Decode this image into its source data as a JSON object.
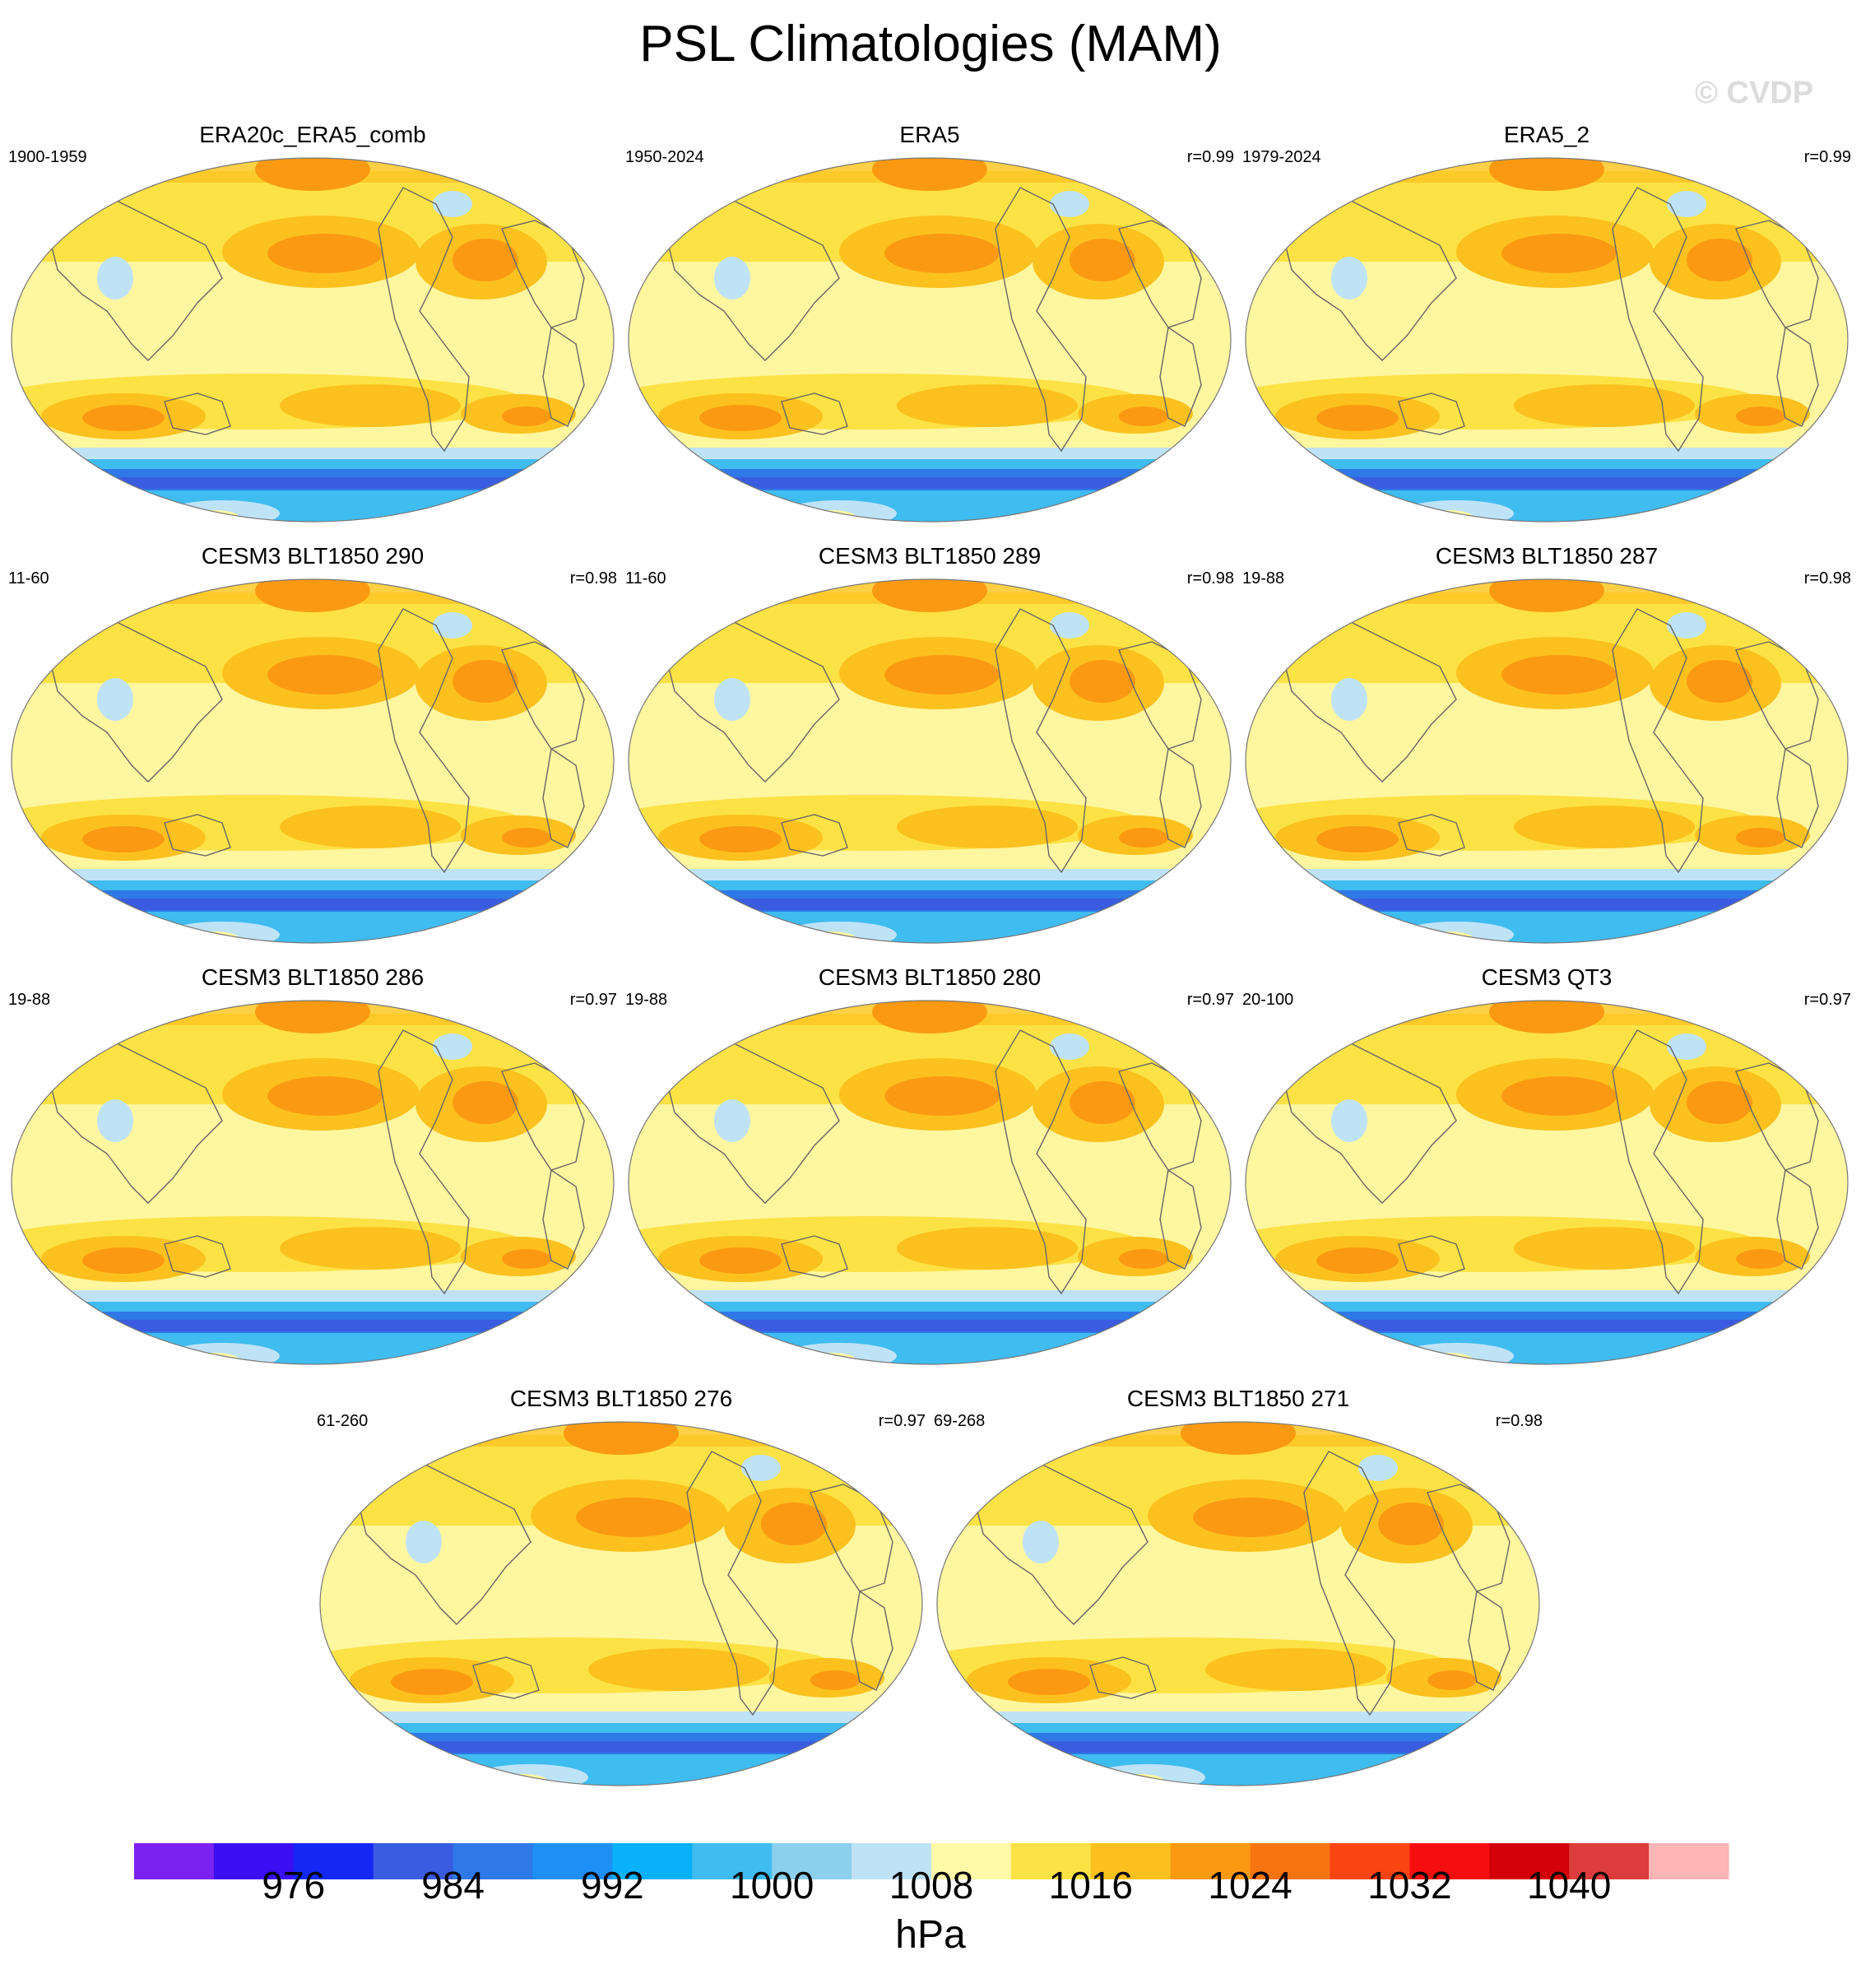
{
  "title": "PSL Climatologies (MAM)",
  "watermark": "© CVDP",
  "panels": [
    {
      "name": "ERA20c_ERA5_comb",
      "years": "1900-1959",
      "corr": ""
    },
    {
      "name": "ERA5",
      "years": "1950-2024",
      "corr": "r=0.99"
    },
    {
      "name": "ERA5_2",
      "years": "1979-2024",
      "corr": "r=0.99"
    },
    {
      "name": "CESM3 BLT1850 290",
      "years": "11-60",
      "corr": "r=0.98"
    },
    {
      "name": "CESM3 BLT1850 289",
      "years": "11-60",
      "corr": "r=0.98"
    },
    {
      "name": "CESM3 BLT1850 287",
      "years": "19-88",
      "corr": "r=0.98"
    },
    {
      "name": "CESM3 BLT1850 286",
      "years": "19-88",
      "corr": "r=0.97"
    },
    {
      "name": "CESM3 BLT1850 280",
      "years": "19-88",
      "corr": "r=0.97"
    },
    {
      "name": "CESM3 QT3",
      "years": "20-100",
      "corr": "r=0.97"
    },
    {
      "name": "CESM3 BLT1850 276",
      "years": "61-260",
      "corr": "r=0.97"
    },
    {
      "name": "CESM3 BLT1850 271",
      "years": "69-268",
      "corr": "r=0.98"
    }
  ],
  "colorbar": {
    "units": "hPa",
    "labels": [
      "976",
      "984",
      "992",
      "1000",
      "1008",
      "1016",
      "1024",
      "1032",
      "1040"
    ],
    "colors": [
      "#7b22f0",
      "#3a0ff2",
      "#1428f4",
      "#3a5ce0",
      "#2f78e8",
      "#1e90f5",
      "#0ab0f8",
      "#3fbcf0",
      "#8ccfee",
      "#bfe3f6",
      "#fffaa8",
      "#fde245",
      "#fcc11e",
      "#fb9a12",
      "#f87410",
      "#f84512",
      "#f50e10",
      "#d40008",
      "#dc3c3c",
      "#fdb4b4"
    ]
  },
  "map_colors": {
    "ocean_base": "#fff6a0",
    "mid_high": "#fde245",
    "high": "#fcc11e",
    "very_high": "#fb9a12",
    "blue_light": "#bfe3f6",
    "blue_mid": "#3fbcf0",
    "blue_deep": "#2f78e8",
    "blue_darker": "#3a5ce0",
    "coast": "#666666"
  }
}
